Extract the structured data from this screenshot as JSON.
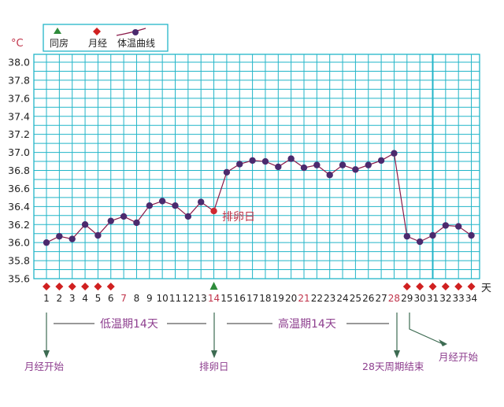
{
  "chart_data": {
    "type": "line",
    "unit_label": "°C",
    "x_unit_label": "天",
    "x": [
      1,
      2,
      3,
      4,
      5,
      6,
      7,
      8,
      9,
      10,
      11,
      12,
      13,
      14,
      15,
      16,
      17,
      18,
      19,
      20,
      21,
      22,
      23,
      24,
      25,
      26,
      27,
      28,
      29,
      30,
      31,
      32,
      33,
      34
    ],
    "x_tick_labels": [
      "1",
      "2",
      "3",
      "4",
      "5",
      "6",
      "7",
      "8",
      "9",
      "10",
      "11",
      "12",
      "13",
      "14",
      "15",
      "16",
      "17",
      "18",
      "19",
      "20",
      "21",
      "22",
      "23",
      "24",
      "25",
      "26",
      "27",
      "28",
      "29",
      "30",
      "31",
      "32",
      "33",
      "34"
    ],
    "highlight_x_ticks": [
      7,
      14,
      21,
      28
    ],
    "ylim": [
      35.6,
      38.0
    ],
    "y_ticks": [
      "35.6",
      "35.8",
      "36.0",
      "36.2",
      "36.4",
      "36.6",
      "36.8",
      "37.0",
      "37.2",
      "37.4",
      "37.6",
      "37.8",
      "38.0"
    ],
    "highlight_y_ticks": [
      "35.6",
      "36.6",
      "37.6"
    ],
    "series": [
      {
        "name": "体温曲线",
        "values": [
          36.0,
          36.07,
          36.04,
          36.2,
          36.08,
          36.24,
          36.29,
          36.22,
          36.41,
          36.46,
          36.41,
          36.29,
          36.45,
          36.35,
          36.78,
          36.87,
          36.91,
          36.9,
          36.84,
          36.93,
          36.83,
          36.86,
          36.75,
          36.86,
          36.81,
          36.86,
          36.91,
          36.99,
          36.07,
          36.01,
          36.08,
          36.19,
          36.18,
          36.08
        ],
        "color": "#8b1a4a",
        "point_color": "#4b2a6e"
      }
    ],
    "menstruation_days": [
      1,
      2,
      3,
      4,
      5,
      6,
      29,
      30,
      31,
      32,
      33,
      34
    ],
    "intercourse_days": [
      14
    ],
    "ovulation_day": 14,
    "cycle_end_day": 31,
    "grid": true,
    "legend": {
      "placement": "top-left",
      "items": [
        {
          "label": "同房",
          "symbol": "triangle",
          "color": "#2e8b3a"
        },
        {
          "label": "月经",
          "symbol": "diamond",
          "color": "#d02020"
        },
        {
          "label": "体温曲线",
          "symbol": "line-point",
          "color": "#4b2a6e"
        }
      ]
    },
    "annotations": {
      "ovulation_label": "排卵日",
      "low_phase": "低温期14天",
      "high_phase": "高温期14天",
      "period_start_1": "月经开始",
      "ovulation_day_label": "排卵日",
      "cycle_end": "28天周期结束",
      "period_start_2": "月经开始"
    },
    "colors": {
      "grid": "#22b5c8",
      "highlight_tick": "#c0334a",
      "annotation_red": "#c0334a",
      "annotation_purple": "#8e3f8f",
      "arrow": "#3d6b52"
    }
  }
}
